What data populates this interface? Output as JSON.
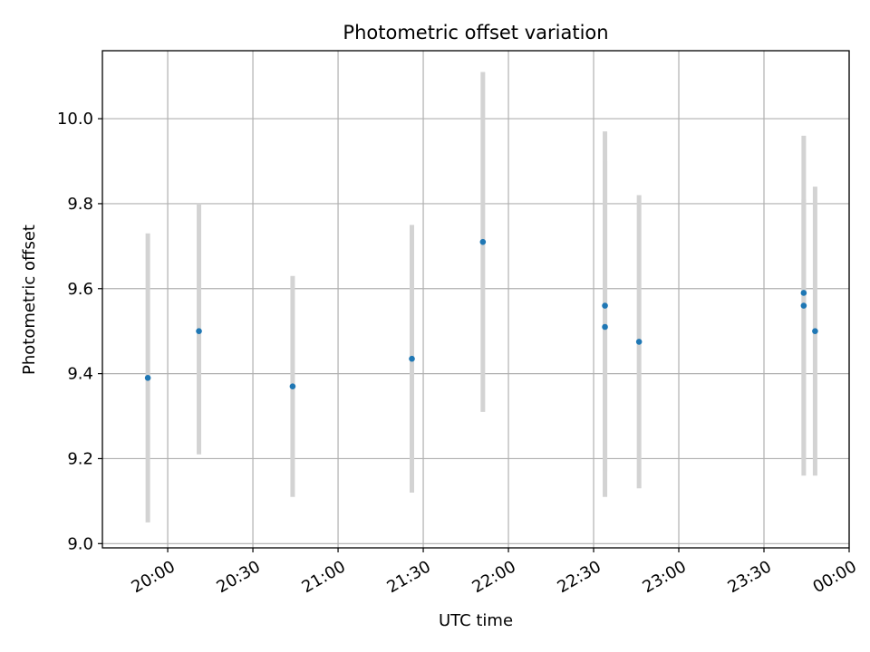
{
  "chart_data": {
    "type": "scatter",
    "title": "Photometric offset variation",
    "xlabel": "UTC time",
    "ylabel": "Photometric offset",
    "x_ticks": [
      "20:00",
      "20:30",
      "21:00",
      "21:30",
      "22:00",
      "22:30",
      "23:00",
      "23:30",
      "00:00"
    ],
    "y_ticks": [
      "9.0",
      "9.2",
      "9.4",
      "9.6",
      "9.8",
      "10.0"
    ],
    "xlim": [
      "19:37",
      "00:00"
    ],
    "ylim": [
      8.99,
      10.16
    ],
    "grid": true,
    "marker_color": "#1f77b4",
    "errorbar_color": "#d3d3d3",
    "points": [
      {
        "x": "19:53",
        "y": 9.39,
        "ylow": 9.05,
        "yhigh": 9.73
      },
      {
        "x": "20:11",
        "y": 9.5,
        "ylow": 9.21,
        "yhigh": 9.8
      },
      {
        "x": "20:44",
        "y": 9.37,
        "ylow": 9.11,
        "yhigh": 9.63
      },
      {
        "x": "21:26",
        "y": 9.435,
        "ylow": 9.12,
        "yhigh": 9.75
      },
      {
        "x": "21:51",
        "y": 9.71,
        "ylow": 9.31,
        "yhigh": 10.11
      },
      {
        "x": "22:34",
        "y": 9.51,
        "ylow": 9.11,
        "yhigh": 9.9
      },
      {
        "x": "22:34",
        "y": 9.56,
        "ylow": 9.17,
        "yhigh": 9.97
      },
      {
        "x": "22:46",
        "y": 9.475,
        "ylow": 9.13,
        "yhigh": 9.82
      },
      {
        "x": "23:44",
        "y": 9.59,
        "ylow": 9.2,
        "yhigh": 9.81
      },
      {
        "x": "23:44",
        "y": 9.56,
        "ylow": 9.16,
        "yhigh": 9.96
      },
      {
        "x": "23:48",
        "y": 9.5,
        "ylow": 9.16,
        "yhigh": 9.84
      }
    ]
  }
}
